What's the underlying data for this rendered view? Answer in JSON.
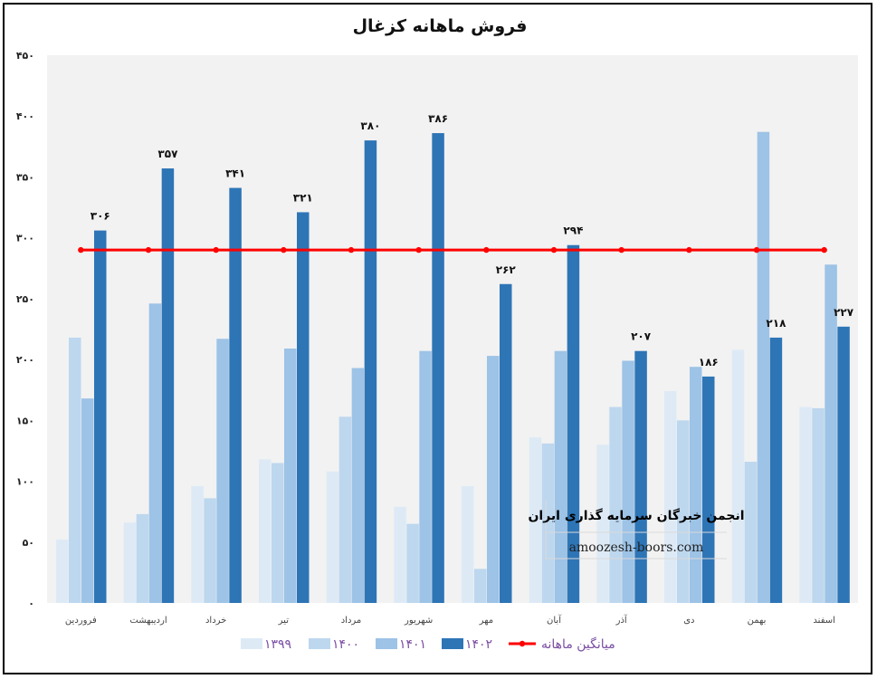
{
  "chart_data": {
    "type": "bar",
    "title": "فروش ماهانه کزغال",
    "categories": [
      "فروردین",
      "اردیبهشت",
      "خرداد",
      "تیر",
      "مرداد",
      "شهریور",
      "مهر",
      "آبان",
      "آذر",
      "دی",
      "بهمن",
      "اسفند"
    ],
    "series": [
      {
        "name": "۱۳۹۹",
        "color": "#ddeaf6",
        "values": [
          52,
          66,
          96,
          118,
          108,
          79,
          96,
          136,
          130,
          174,
          208,
          161
        ]
      },
      {
        "name": "۱۴۰۰",
        "color": "#bdd7ee",
        "values": [
          218,
          73,
          86,
          115,
          153,
          65,
          28,
          131,
          161,
          150,
          116,
          160
        ]
      },
      {
        "name": "۱۴۰۱",
        "color": "#9dc3e6",
        "values": [
          168,
          246,
          217,
          209,
          193,
          207,
          203,
          207,
          199,
          194,
          387,
          278
        ]
      },
      {
        "name": "۱۴۰۲",
        "color": "#2e75b6",
        "values": [
          306,
          357,
          341,
          321,
          380,
          386,
          262,
          294,
          207,
          186,
          218,
          227
        ]
      }
    ],
    "data_labels": [
      "۳۰۶",
      "۳۵۷",
      "۳۴۱",
      "۳۲۱",
      "۳۸۰",
      "۳۸۶",
      "۲۶۲",
      "۲۹۴",
      "۲۰۷",
      "۱۸۶",
      "۲۱۸",
      "۲۲۷"
    ],
    "average_line": {
      "name": "میانگین ماهانه",
      "value": 290,
      "color": "#ff0000"
    },
    "ylim": [
      0,
      450
    ],
    "yticks": [
      0,
      50,
      100,
      150,
      200,
      250,
      300,
      350,
      400,
      450
    ],
    "ytick_labels": [
      "۰",
      "۵۰",
      "۱۰۰",
      "۱۵۰",
      "۲۰۰",
      "۲۵۰",
      "۳۰۰",
      "۳۵۰",
      "۴۰۰",
      "۴۵۰"
    ],
    "grid": false,
    "legend_position": "bottom"
  },
  "watermark": {
    "title": "انجمن خبرگان سرمایه گذاری ایران",
    "url": "amoozesh-boors.com"
  }
}
